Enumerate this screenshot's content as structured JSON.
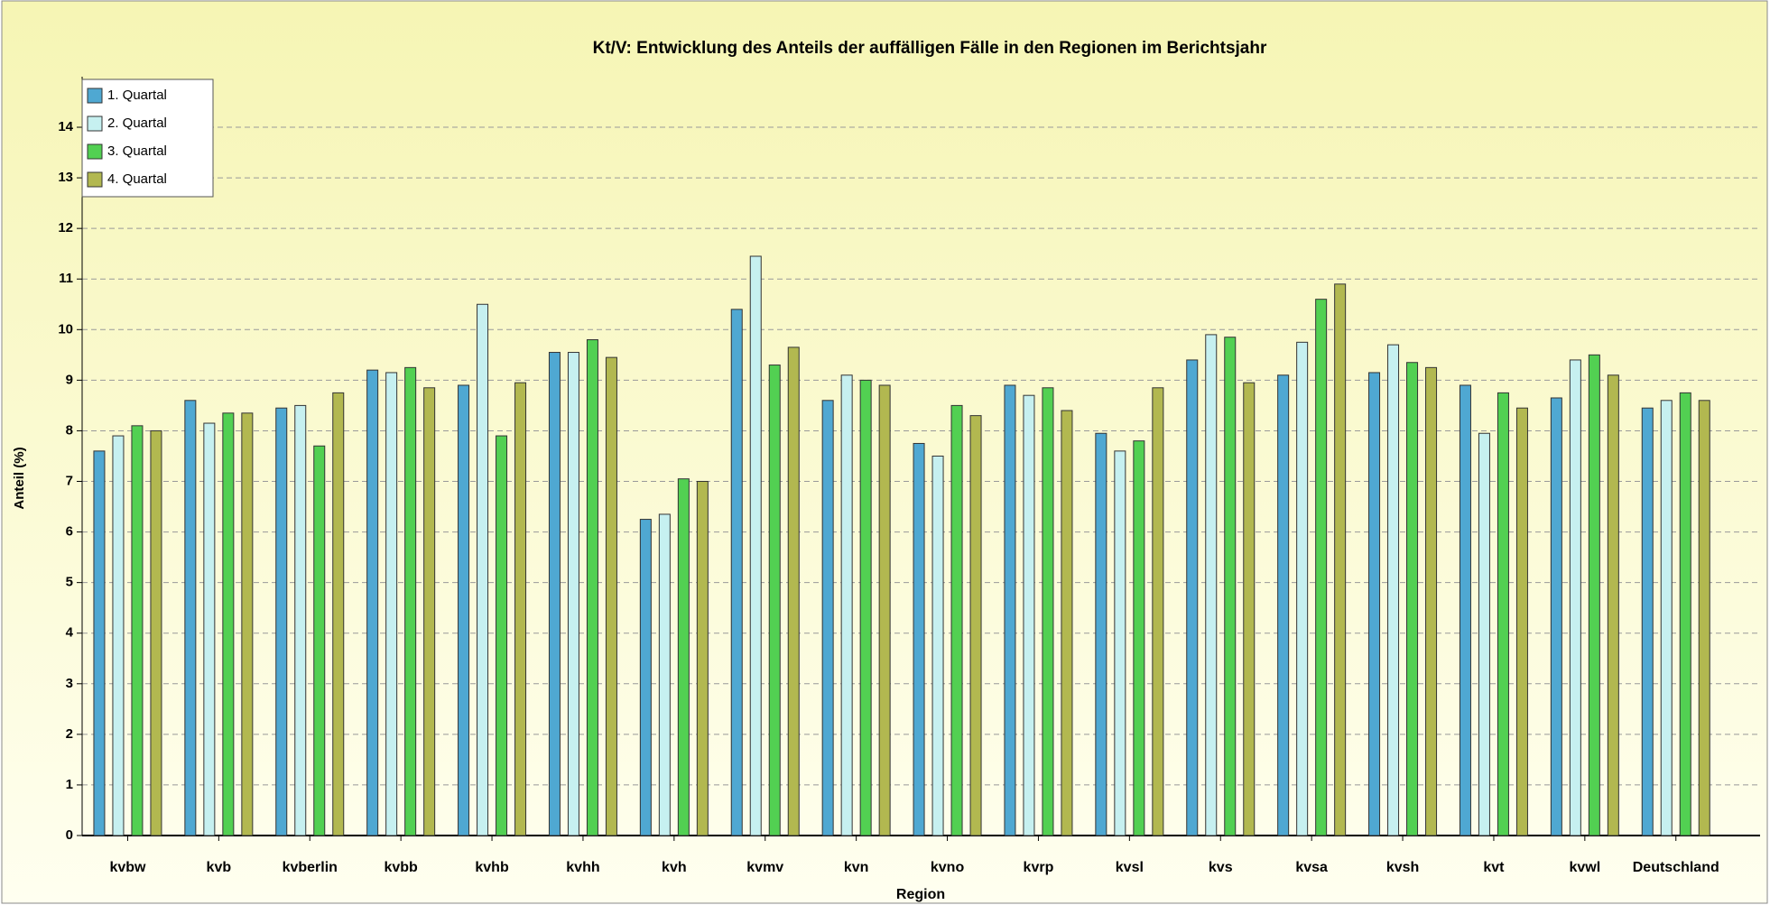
{
  "chart_data": {
    "type": "bar",
    "title": "Kt/V: Entwicklung des Anteils der auffälligen Fälle in den Regionen im Berichtsjahr",
    "x_label": "Region",
    "y_label": "Anteil (%)",
    "categories": [
      "kvbw",
      "kvb",
      "kvberlin",
      "kvbb",
      "kvhb",
      "kvhh",
      "kvh",
      "kvmv",
      "kvn",
      "kvno",
      "kvrp",
      "kvsl",
      "kvs",
      "kvsa",
      "kvsh",
      "kvt",
      "kvwl",
      "Deutschland"
    ],
    "series": [
      {
        "name": "1. Quartal",
        "color": "#4fa8d2",
        "values": [
          7.6,
          8.6,
          8.45,
          9.2,
          8.9,
          9.55,
          6.25,
          10.4,
          8.6,
          7.75,
          8.9,
          7.95,
          9.4,
          9.1,
          9.15,
          8.9,
          8.65,
          8.45
        ]
      },
      {
        "name": "2. Quartal",
        "color": "#c6f0f0",
        "values": [
          7.9,
          8.15,
          8.5,
          9.15,
          10.5,
          9.55,
          6.35,
          11.45,
          9.1,
          7.5,
          8.7,
          7.6,
          9.9,
          9.75,
          9.7,
          7.95,
          9.4,
          8.6
        ]
      },
      {
        "name": "3. Quartal",
        "color": "#52d052",
        "values": [
          8.1,
          8.35,
          7.7,
          9.25,
          7.9,
          9.8,
          7.05,
          9.3,
          9.0,
          8.5,
          8.85,
          7.8,
          9.85,
          10.6,
          9.35,
          8.75,
          9.5,
          8.75
        ]
      },
      {
        "name": "4. Quartal",
        "color": "#b2b850",
        "values": [
          8.0,
          8.35,
          8.75,
          8.85,
          8.95,
          9.45,
          7.0,
          9.65,
          8.9,
          8.3,
          8.4,
          8.85,
          8.95,
          10.9,
          9.25,
          8.45,
          9.1,
          8.6
        ]
      }
    ],
    "ylim": [
      0,
      15
    ],
    "yticks": [
      0,
      1,
      2,
      3,
      4,
      5,
      6,
      7,
      8,
      9,
      10,
      11,
      12,
      13,
      14
    ],
    "grid": true,
    "legend": "top-left"
  }
}
